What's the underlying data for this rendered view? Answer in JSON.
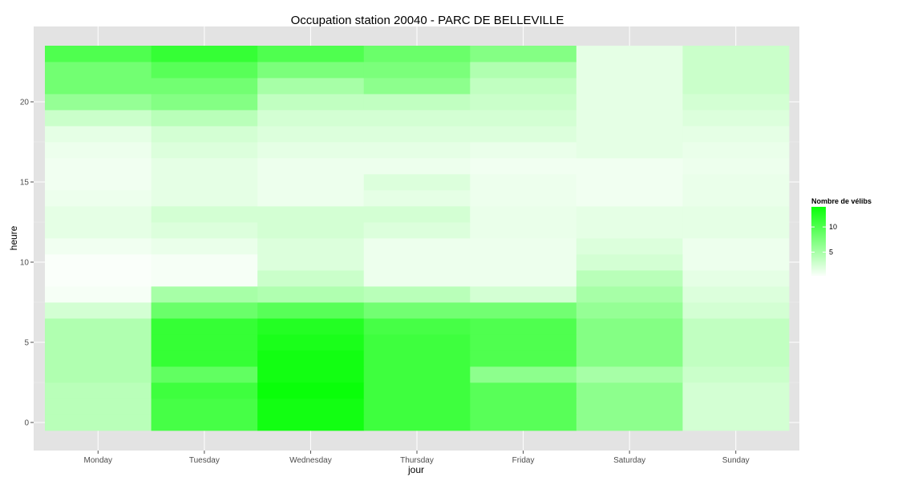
{
  "chart_data": {
    "type": "heatmap",
    "title": "Occupation station 20040 - PARC DE BELLEVILLE",
    "xlabel": "jour",
    "ylabel": "heure",
    "x": [
      "Monday",
      "Tuesday",
      "Wednesday",
      "Thursday",
      "Friday",
      "Saturday",
      "Sunday"
    ],
    "y": [
      0,
      1,
      2,
      3,
      4,
      5,
      6,
      7,
      8,
      9,
      10,
      11,
      12,
      13,
      14,
      15,
      16,
      17,
      18,
      19,
      20,
      21,
      22,
      23
    ],
    "y_ticks": [
      0,
      5,
      10,
      15,
      20
    ],
    "ylim": [
      -0.5,
      23.5
    ],
    "grid": true,
    "values": [
      [
        4.0,
        10.5,
        13.5,
        11.0,
        9.5,
        6.5,
        2.5
      ],
      [
        4.0,
        10.5,
        13.5,
        11.0,
        9.5,
        6.5,
        2.5
      ],
      [
        4.0,
        11.0,
        14.0,
        11.0,
        9.5,
        6.5,
        2.5
      ],
      [
        4.5,
        9.0,
        13.5,
        11.0,
        6.5,
        5.0,
        3.0
      ],
      [
        4.5,
        11.5,
        13.5,
        11.0,
        10.0,
        7.0,
        3.5
      ],
      [
        4.5,
        11.5,
        13.0,
        11.0,
        10.0,
        7.0,
        3.5
      ],
      [
        4.5,
        11.5,
        12.5,
        10.5,
        10.0,
        7.0,
        3.5
      ],
      [
        2.5,
        8.5,
        9.5,
        8.0,
        8.0,
        6.0,
        2.5
      ],
      [
        0.5,
        5.0,
        4.5,
        4.0,
        2.5,
        5.0,
        2.0
      ],
      [
        0.3,
        0.5,
        3.0,
        1.0,
        1.0,
        4.0,
        1.5
      ],
      [
        0.3,
        0.5,
        2.0,
        1.0,
        1.0,
        2.5,
        1.0
      ],
      [
        0.8,
        1.2,
        2.0,
        1.0,
        1.0,
        2.0,
        1.0
      ],
      [
        1.5,
        2.0,
        2.5,
        2.0,
        1.2,
        1.5,
        1.5
      ],
      [
        1.5,
        2.5,
        2.5,
        2.5,
        1.2,
        1.5,
        1.5
      ],
      [
        1.0,
        1.5,
        1.0,
        1.5,
        1.0,
        0.8,
        1.2
      ],
      [
        0.8,
        1.5,
        1.0,
        2.0,
        1.0,
        0.8,
        1.2
      ],
      [
        0.8,
        1.5,
        1.0,
        1.0,
        0.8,
        0.8,
        1.0
      ],
      [
        1.0,
        2.0,
        1.5,
        1.5,
        1.2,
        1.5,
        1.2
      ],
      [
        1.5,
        2.5,
        2.0,
        2.0,
        2.0,
        1.5,
        1.5
      ],
      [
        3.0,
        4.0,
        2.5,
        2.5,
        2.5,
        1.5,
        2.0
      ],
      [
        6.0,
        7.0,
        3.5,
        3.5,
        3.0,
        1.5,
        2.5
      ],
      [
        8.0,
        8.0,
        5.0,
        6.5,
        3.5,
        1.5,
        3.0
      ],
      [
        8.0,
        9.5,
        7.5,
        7.5,
        4.5,
        1.5,
        3.0
      ],
      [
        10.0,
        11.5,
        10.0,
        8.5,
        7.0,
        1.5,
        3.0
      ]
    ],
    "color_low": "#ffffff",
    "color_high": "#00ff00",
    "legend": {
      "title": "Nombre de vélibs",
      "ticks": [
        5,
        10
      ],
      "range": [
        0.3,
        14.0
      ],
      "position": "right"
    },
    "panel_background": "#e3e3e3",
    "grid_color": "#ffffff"
  }
}
